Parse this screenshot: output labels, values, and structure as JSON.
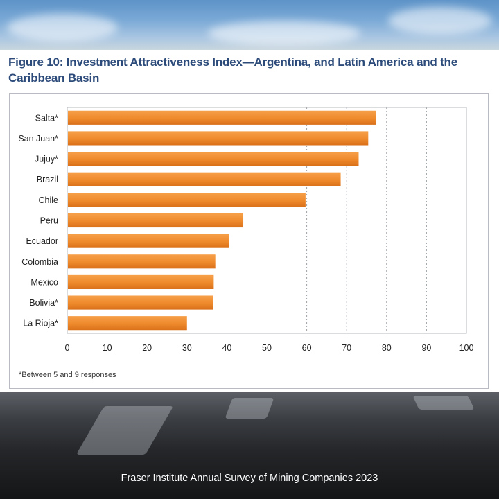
{
  "figure_title": "Figure 10: Investment Attractiveness Index—Argentina, and Latin America and the Caribbean Basin",
  "footnote": "*Between 5 and 9 responses",
  "footer": "Fraser Institute Annual Survey of Mining Companies 2023",
  "colors": {
    "bar": "#ef8a2c",
    "bar_dark": "#d9701a",
    "title": "#2c4b7a"
  },
  "chart_data": {
    "type": "bar",
    "orientation": "horizontal",
    "title": "Figure 10: Investment Attractiveness Index—Argentina, and Latin America and the Caribbean Basin",
    "categories": [
      "Salta*",
      "San Juan*",
      "Jujuy*",
      "Brazil",
      "Chile",
      "Peru",
      "Ecuador",
      "Colombia",
      "Mexico",
      "Bolivia*",
      "La Rioja*"
    ],
    "values": [
      77.3,
      75.4,
      73.0,
      68.5,
      59.7,
      44.1,
      40.6,
      37.1,
      36.7,
      36.5,
      30.0
    ],
    "xlim": [
      0,
      100
    ],
    "xticks": [
      0,
      10,
      20,
      30,
      40,
      50,
      60,
      70,
      80,
      90,
      100
    ],
    "xlabel": "",
    "ylabel": "",
    "grid": "vertical dotted at 60, 70, 80, 90"
  }
}
